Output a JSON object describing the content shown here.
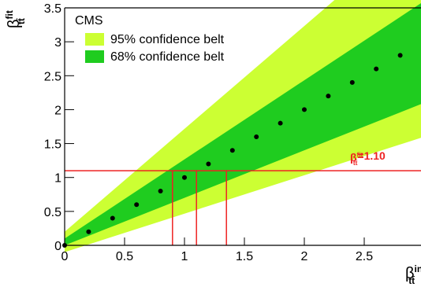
{
  "chart_data": {
    "type": "belt",
    "legend_title": "CMS",
    "x_label": {
      "symbol": "β",
      "sup": "in",
      "sub": "tt̄"
    },
    "y_label": {
      "symbol": "β",
      "sup": "fit",
      "sub": "tt̄"
    },
    "xlim": [
      0,
      3
    ],
    "ylim": [
      0,
      3.5
    ],
    "xticks": [
      0,
      0.5,
      1,
      1.5,
      2,
      2.5
    ],
    "yticks": [
      0,
      0.5,
      1,
      1.5,
      2,
      2.5,
      3,
      3.5
    ],
    "belts": [
      {
        "name": "95% confidence belt",
        "color": "#ccff33",
        "x": [
          0,
          3
        ],
        "lower": [
          -0.1,
          1.6
        ],
        "upper": [
          0.2,
          4.75
        ]
      },
      {
        "name": "68% confidence belt",
        "color": "#1fcc1f",
        "x": [
          0,
          3
        ],
        "lower": [
          0,
          2.1
        ],
        "upper": [
          0.1,
          3.6
        ]
      }
    ],
    "points": {
      "color": "#000000",
      "x": [
        0,
        0.2,
        0.4,
        0.6,
        0.8,
        1.0,
        1.2,
        1.4,
        1.6,
        1.8,
        2.0,
        2.2,
        2.4,
        2.6,
        2.8
      ],
      "values": [
        0,
        0.2,
        0.4,
        0.6,
        0.8,
        1.0,
        1.2,
        1.4,
        1.6,
        1.8,
        2.0,
        2.2,
        2.4,
        2.6,
        2.8
      ]
    },
    "measurement": {
      "color": "#ee2222",
      "value": 1.1,
      "interval_x": [
        0.9,
        1.1,
        1.35
      ],
      "label": {
        "symbol": "β",
        "sup": "fit",
        "sub": "tt̄",
        "text": "=1.10"
      }
    }
  }
}
